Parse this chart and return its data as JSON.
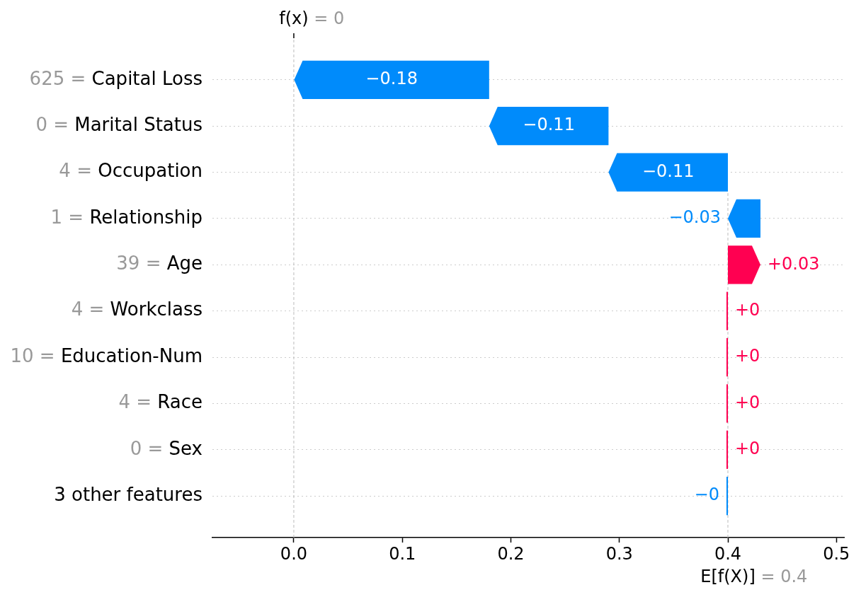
{
  "chart_data": {
    "type": "bar",
    "orientation": "horizontal",
    "categories": [
      "625 = Capital Loss",
      "0 = Marital Status",
      "4 = Occupation",
      "1 = Relationship",
      "39 = Age",
      "4 = Workclass",
      "10 = Education-Num",
      "4 = Race",
      "0 = Sex",
      "3 other features"
    ],
    "values": [
      -0.18,
      -0.11,
      -0.11,
      -0.03,
      0.03,
      0,
      0,
      0,
      0,
      -0.0
    ],
    "base": [
      0.18,
      0.29,
      0.4,
      0.43,
      0.4,
      0.4,
      0.4,
      0.4,
      0.4,
      0.4
    ],
    "colors": [
      "#008bfb",
      "#008bfb",
      "#008bfb",
      "#008bfb",
      "#ff0051",
      "#ff0051",
      "#ff0051",
      "#ff0051",
      "#ff0051",
      "#008bfb"
    ],
    "value_labels": [
      "−0.18",
      "−0.11",
      "−0.11",
      "−0.03",
      "+0.03",
      "+0",
      "+0",
      "+0",
      "+0",
      "−0"
    ],
    "xlim": [
      -0.075,
      0.507
    ],
    "xticks": [
      {
        "value": 0,
        "label": "0.0"
      },
      0.1,
      0.2,
      0.3,
      0.4,
      0.5
    ],
    "ref_lines": [
      {
        "axis": "x",
        "value": 0,
        "label": "f(x) = 0",
        "line_style": "dashed"
      },
      {
        "axis": "x",
        "value": 0.4,
        "label": "E[f(X)] = 0.4",
        "line_style": "dashed"
      }
    ],
    "grid": "y"
  }
}
